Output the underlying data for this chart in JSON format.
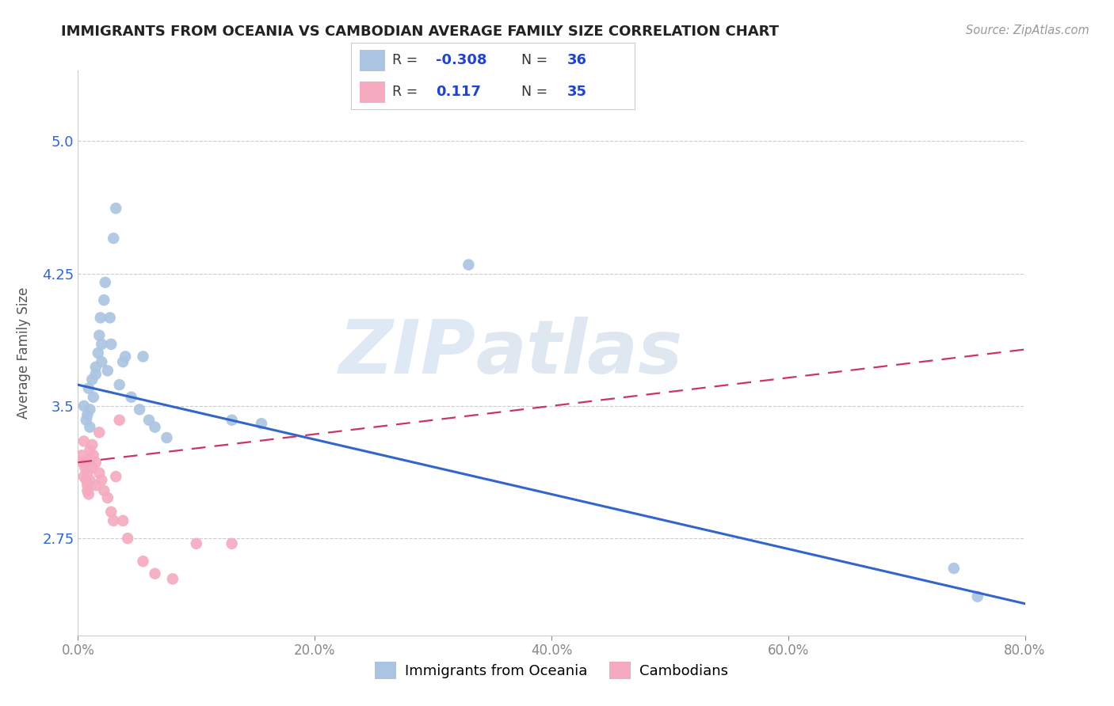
{
  "title": "IMMIGRANTS FROM OCEANIA VS CAMBODIAN AVERAGE FAMILY SIZE CORRELATION CHART",
  "source": "Source: ZipAtlas.com",
  "ylabel": "Average Family Size",
  "xlim": [
    0.0,
    0.8
  ],
  "ylim": [
    2.2,
    5.4
  ],
  "yticks": [
    2.75,
    3.5,
    4.25,
    5.0
  ],
  "xticks": [
    0.0,
    0.2,
    0.4,
    0.6,
    0.8
  ],
  "xticklabels": [
    "0.0%",
    "20.0%",
    "40.0%",
    "60.0%",
    "80.0%"
  ],
  "series1_label": "Immigrants from Oceania",
  "series2_label": "Cambodians",
  "series1_color": "#aac4e2",
  "series2_color": "#f5aabf",
  "series1_line_color": "#3366cc",
  "series2_line_color": "#cc3366",
  "watermark1": "ZIP",
  "watermark2": "atlas",
  "watermark1_color": "#b8d0e8",
  "watermark2_color": "#b8cce0",
  "background_color": "#ffffff",
  "grid_color": "#cccccc",
  "title_color": "#222222",
  "legend_r_color": "#2244cc",
  "legend_text_color": "#333333",
  "series1_x": [
    0.005,
    0.007,
    0.008,
    0.009,
    0.01,
    0.01,
    0.012,
    0.013,
    0.015,
    0.015,
    0.017,
    0.018,
    0.019,
    0.02,
    0.02,
    0.022,
    0.023,
    0.025,
    0.027,
    0.028,
    0.03,
    0.032,
    0.035,
    0.038,
    0.04,
    0.045,
    0.052,
    0.055,
    0.06,
    0.065,
    0.075,
    0.13,
    0.155,
    0.33,
    0.74,
    0.76
  ],
  "series1_y": [
    3.5,
    3.42,
    3.45,
    3.6,
    3.38,
    3.48,
    3.65,
    3.55,
    3.68,
    3.72,
    3.8,
    3.9,
    4.0,
    3.85,
    3.75,
    4.1,
    4.2,
    3.7,
    4.0,
    3.85,
    4.45,
    4.62,
    3.62,
    3.75,
    3.78,
    3.55,
    3.48,
    3.78,
    3.42,
    3.38,
    3.32,
    3.42,
    3.4,
    4.3,
    2.58,
    2.42
  ],
  "series2_x": [
    0.003,
    0.004,
    0.005,
    0.005,
    0.006,
    0.007,
    0.008,
    0.008,
    0.008,
    0.009,
    0.009,
    0.01,
    0.01,
    0.01,
    0.012,
    0.012,
    0.013,
    0.015,
    0.015,
    0.018,
    0.018,
    0.02,
    0.022,
    0.025,
    0.028,
    0.03,
    0.032,
    0.035,
    0.038,
    0.042,
    0.055,
    0.065,
    0.08,
    0.1,
    0.13
  ],
  "series2_y": [
    3.22,
    3.18,
    3.3,
    3.1,
    3.15,
    3.08,
    3.12,
    3.05,
    3.02,
    3.0,
    3.18,
    3.25,
    3.2,
    3.08,
    3.28,
    3.15,
    3.22,
    3.18,
    3.05,
    3.35,
    3.12,
    3.08,
    3.02,
    2.98,
    2.9,
    2.85,
    3.1,
    3.42,
    2.85,
    2.75,
    2.62,
    2.55,
    2.52,
    2.72,
    2.72
  ],
  "blue_line_x0": 0.0,
  "blue_line_y0": 3.62,
  "blue_line_x1": 0.8,
  "blue_line_y1": 2.38,
  "pink_line_x0": 0.0,
  "pink_line_y0": 3.18,
  "pink_line_x1": 0.8,
  "pink_line_y1": 3.82
}
